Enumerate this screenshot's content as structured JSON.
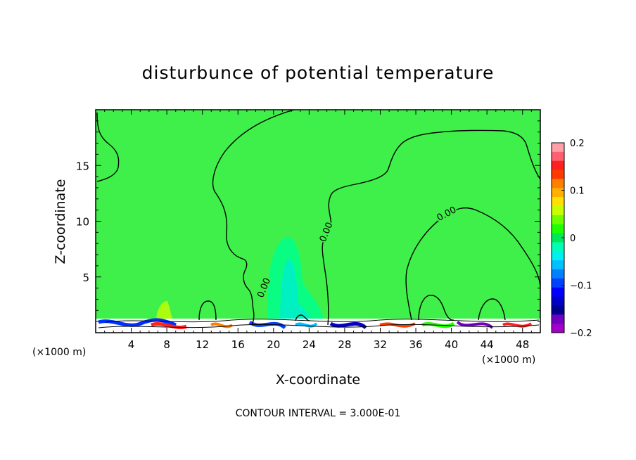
{
  "chart_data": {
    "type": "heatmap",
    "title": "disturbunce of potential temperature",
    "xlabel": "X-coordinate",
    "ylabel": "Z-coordinate",
    "x_unit_left": "(×1000 m)",
    "x_unit_right": "(×1000 m)",
    "xlim": [
      0,
      50
    ],
    "ylim": [
      0,
      20
    ],
    "x_ticks": [
      {
        "value": 4,
        "label": "4"
      },
      {
        "value": 8,
        "label": "8"
      },
      {
        "value": 12,
        "label": "12"
      },
      {
        "value": 16,
        "label": "16"
      },
      {
        "value": 20,
        "label": "20"
      },
      {
        "value": 24,
        "label": "24"
      },
      {
        "value": 28,
        "label": "28"
      },
      {
        "value": 32,
        "label": "32"
      },
      {
        "value": 36,
        "label": "36"
      },
      {
        "value": 40,
        "label": "40"
      },
      {
        "value": 44,
        "label": "44"
      },
      {
        "value": 48,
        "label": "48"
      }
    ],
    "y_ticks": [
      {
        "value": 5,
        "label": "5"
      },
      {
        "value": 10,
        "label": "10"
      },
      {
        "value": 15,
        "label": "15"
      }
    ],
    "colorbar": {
      "range": [
        -0.2,
        0.2
      ],
      "ticks": [
        {
          "value": 0.2,
          "label": "0.2"
        },
        {
          "value": 0.1,
          "label": "0.1"
        },
        {
          "value": 0,
          "label": "0"
        },
        {
          "value": -0.1,
          "label": "-0.1"
        },
        {
          "value": -0.2,
          "label": "-0.2"
        }
      ],
      "colors_top_to_bottom": [
        "#ff9fa8",
        "#ff6070",
        "#ff2020",
        "#ff3a00",
        "#ff8000",
        "#ffb000",
        "#ffe000",
        "#c8ff00",
        "#70ff00",
        "#20ff00",
        "#00e85a",
        "#00ffb4",
        "#00f0f0",
        "#00c0ff",
        "#0080ff",
        "#0040ff",
        "#0000ff",
        "#0000c8",
        "#000090",
        "#7000c0",
        "#a000c8"
      ]
    },
    "contour_labels": [
      {
        "text": "0.00",
        "x": 19.0,
        "z": 4.0
      },
      {
        "text": "0.00",
        "x": 26.0,
        "z": 9.0
      },
      {
        "text": "0.00",
        "x": 39.5,
        "z": 10.6
      }
    ],
    "contour_interval_note": "CONTOUR INTERVAL = 3.000E-01"
  }
}
